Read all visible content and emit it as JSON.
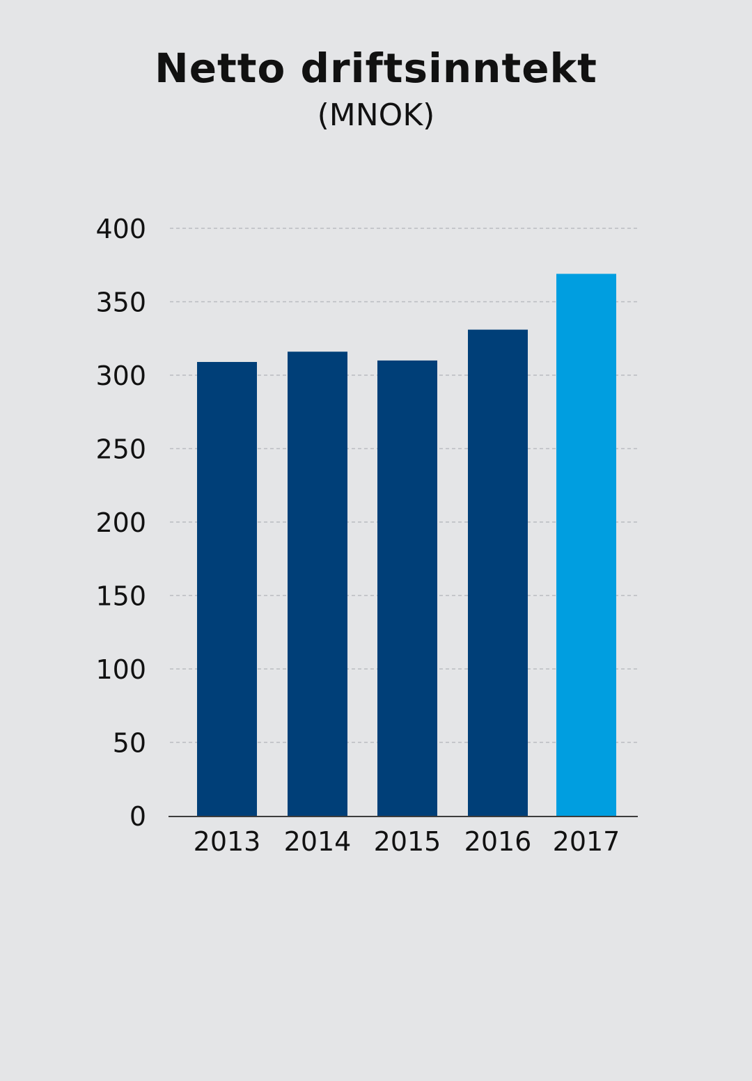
{
  "chart_data": {
    "type": "bar",
    "title": "Netto driftsinntekt",
    "subtitle": "(MNOK)",
    "xlabel": "",
    "ylabel": "",
    "categories": [
      "2013",
      "2014",
      "2015",
      "2016",
      "2017"
    ],
    "values": [
      309,
      316,
      310,
      331,
      369
    ],
    "ylim": [
      0,
      400
    ],
    "yticks": [
      0,
      50,
      100,
      150,
      200,
      250,
      300,
      350,
      400
    ],
    "grid": true,
    "legend": "none"
  },
  "colors": {
    "background": "#e4e5e7",
    "bar": "#003f78",
    "bar_highlight": "#009ee0",
    "grid": "#b9bcc0",
    "axis": "#3c3c3c",
    "text": "#111111"
  }
}
